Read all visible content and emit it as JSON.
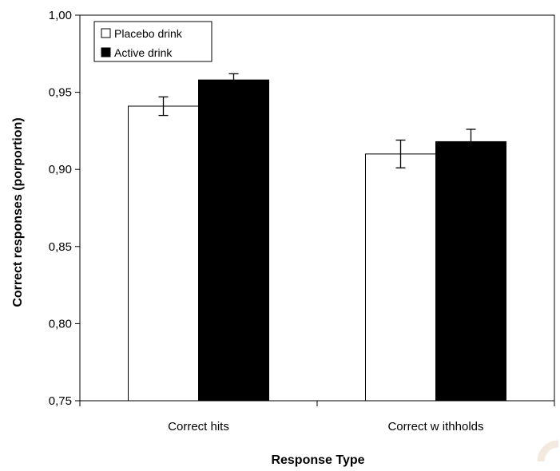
{
  "chart_data": {
    "type": "bar",
    "categories": [
      "Correct hits",
      "Correct w ithholds"
    ],
    "series": [
      {
        "name": "Placebo drink",
        "values": [
          0.941,
          0.91
        ],
        "errors": [
          0.006,
          0.009
        ],
        "color": "#ffffff"
      },
      {
        "name": "Active drink",
        "values": [
          0.958,
          0.918
        ],
        "errors": [
          0.004,
          0.008
        ],
        "color": "#000000"
      }
    ],
    "xlabel": "Response Type",
    "ylabel": "Correct responses (porportion)",
    "ylim": [
      0.75,
      1.0
    ],
    "yticks": [
      0.75,
      0.8,
      0.85,
      0.9,
      0.95,
      1.0
    ],
    "ytick_labels": [
      "0,75",
      "0,80",
      "0,85",
      "0,90",
      "0,95",
      "1,00"
    ],
    "grid": false,
    "legend_position": "top-left"
  }
}
